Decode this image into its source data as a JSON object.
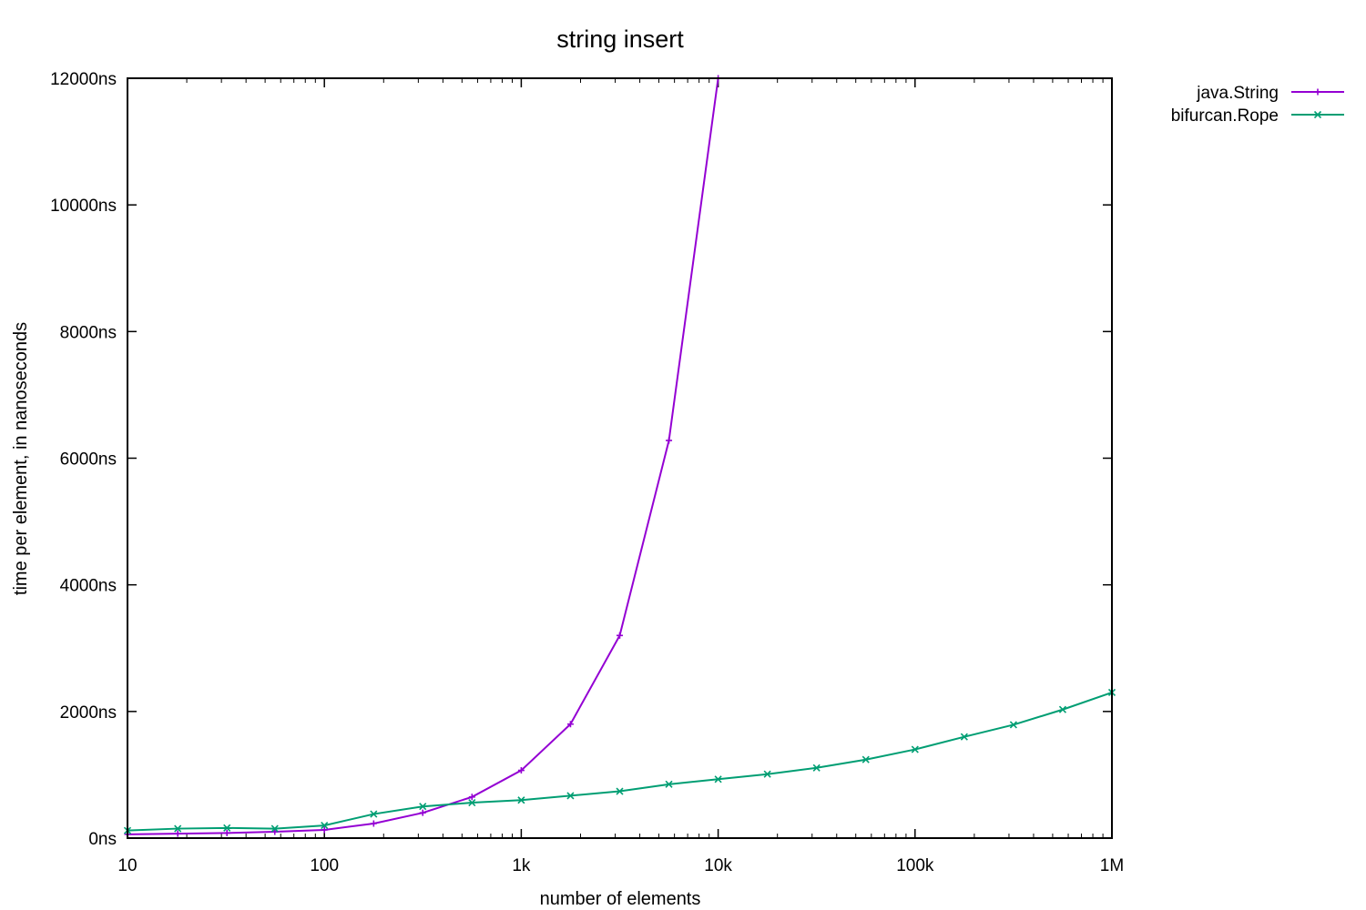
{
  "chart_data": {
    "type": "line",
    "title": "string insert",
    "xlabel": "number of elements",
    "ylabel": "time per element, in nanoseconds",
    "x_scale": "log",
    "xlim": [
      10,
      1000000
    ],
    "ylim": [
      0,
      12000
    ],
    "x_ticks": [
      {
        "value": 10,
        "label": "10"
      },
      {
        "value": 100,
        "label": "100"
      },
      {
        "value": 1000,
        "label": "1k"
      },
      {
        "value": 10000,
        "label": "10k"
      },
      {
        "value": 100000,
        "label": "100k"
      },
      {
        "value": 1000000,
        "label": "1M"
      }
    ],
    "y_ticks": [
      {
        "value": 0,
        "label": "0ns"
      },
      {
        "value": 2000,
        "label": "2000ns"
      },
      {
        "value": 4000,
        "label": "4000ns"
      },
      {
        "value": 6000,
        "label": "6000ns"
      },
      {
        "value": 8000,
        "label": "8000ns"
      },
      {
        "value": 10000,
        "label": "10000ns"
      },
      {
        "value": 12000,
        "label": "12000ns"
      }
    ],
    "grid": false,
    "legend_position": "top-right outside",
    "series": [
      {
        "name": "java.String",
        "color": "#9400d3",
        "marker": "plus",
        "x": [
          10,
          18,
          32,
          56,
          100,
          178,
          316,
          562,
          1000,
          1778,
          3162,
          5623,
          10000
        ],
        "y": [
          60,
          70,
          80,
          100,
          130,
          230,
          400,
          650,
          1070,
          1800,
          3200,
          6280,
          12000
        ]
      },
      {
        "name": "bifurcan.Rope",
        "color": "#009e73",
        "marker": "cross",
        "x": [
          10,
          18,
          32,
          56,
          100,
          178,
          316,
          562,
          1000,
          1778,
          3162,
          5623,
          10000,
          17783,
          31623,
          56234,
          100000,
          177828,
          316228,
          562341,
          1000000
        ],
        "y": [
          120,
          150,
          160,
          150,
          200,
          380,
          500,
          560,
          600,
          670,
          740,
          850,
          930,
          1010,
          1110,
          1240,
          1400,
          1600,
          1790,
          2030,
          2300
        ]
      }
    ]
  }
}
